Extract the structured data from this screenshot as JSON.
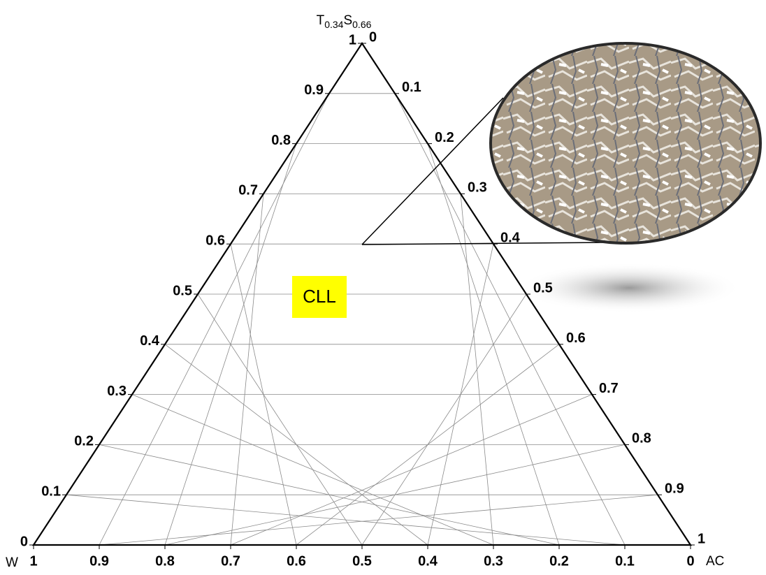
{
  "top_label": [
    "T",
    "0.34",
    "S",
    "0.66"
  ],
  "left_label": "W",
  "right_label": "AC",
  "left_axis_ticks": [
    0,
    0.1,
    0.2,
    0.3,
    0.4,
    0.5,
    0.6,
    0.7,
    0.8,
    0.9,
    1
  ],
  "right_axis_ticks": [
    0,
    0.1,
    0.2,
    0.3,
    0.4,
    0.5,
    0.6,
    0.7,
    0.8,
    0.9,
    1
  ],
  "bottom_axis_ticks": [
    1,
    0.9,
    0.8,
    0.7,
    0.6,
    0.5,
    0.4,
    0.3,
    0.2,
    0.1,
    0
  ],
  "region_label": "CLL"
}
